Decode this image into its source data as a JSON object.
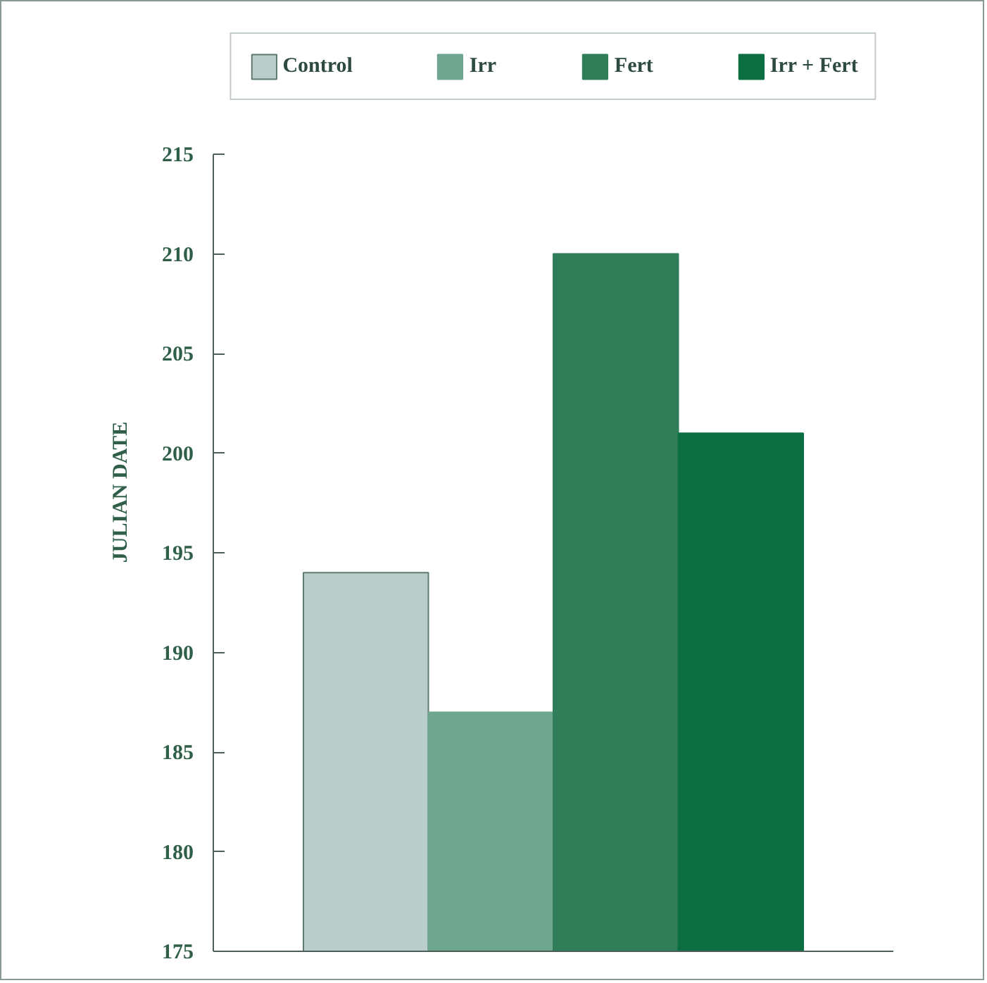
{
  "chart_data": {
    "type": "bar",
    "ylabel": "JULIAN DATE",
    "categories": [
      null
    ],
    "series": [
      {
        "name": "Control",
        "color": "#b9cdca",
        "values": [
          194
        ]
      },
      {
        "name": "Irr",
        "color": "#6fa68f",
        "values": [
          187
        ]
      },
      {
        "name": "Fert",
        "color": "#2f7d59",
        "values": [
          210
        ]
      },
      {
        "name": "Irr + Fert",
        "color": "#0b6e41",
        "values": [
          201
        ]
      }
    ],
    "ylim": [
      175,
      215
    ],
    "yticks": [
      175,
      180,
      185,
      190,
      195,
      200,
      205,
      210,
      215
    ],
    "tick_labels": "y",
    "legend": "top"
  }
}
